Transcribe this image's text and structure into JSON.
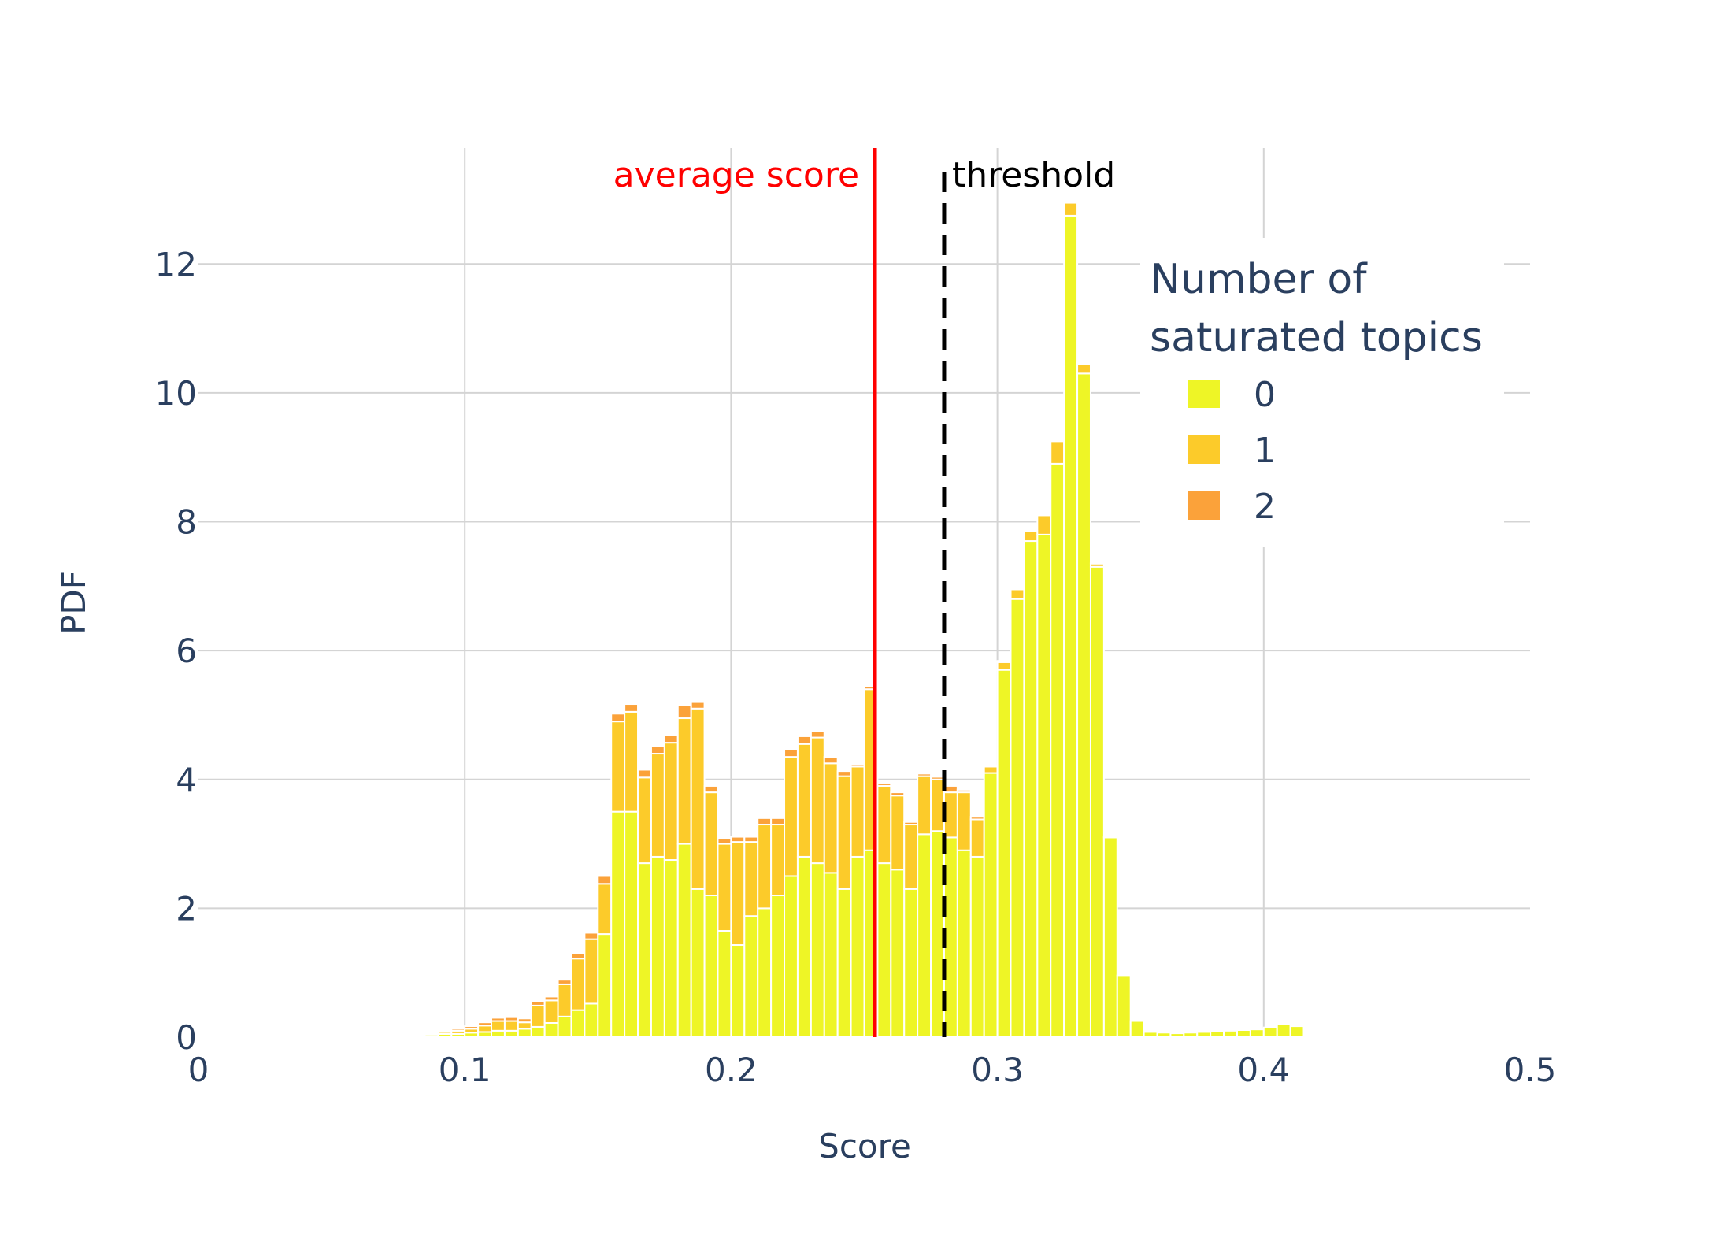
{
  "chart_data": {
    "type": "bar",
    "barmode": "stack",
    "xlabel": "Score",
    "ylabel": "PDF",
    "xlim": [
      0,
      0.5
    ],
    "ylim": [
      0,
      13.8
    ],
    "xticks": [
      0,
      0.1,
      0.2,
      0.3,
      0.4,
      0.5
    ],
    "xtick_labels": [
      "0",
      "0.1",
      "0.2",
      "0.3",
      "0.4",
      "0.5"
    ],
    "yticks": [
      0,
      2,
      4,
      6,
      8,
      10,
      12
    ],
    "ytick_labels": [
      "0",
      "2",
      "4",
      "6",
      "8",
      "10",
      "12"
    ],
    "grid": true,
    "legend": {
      "title_line1": "Number of",
      "title_line2": "saturated topics",
      "position": "top-right"
    },
    "x": [
      0.0525,
      0.0575,
      0.0625,
      0.0675,
      0.0725,
      0.0775,
      0.0825,
      0.0875,
      0.0925,
      0.0975,
      0.1025,
      0.1075,
      0.1125,
      0.1175,
      0.1225,
      0.1275,
      0.1325,
      0.1375,
      0.1425,
      0.1475,
      0.1525,
      0.1575,
      0.1625,
      0.1675,
      0.1725,
      0.1775,
      0.1825,
      0.1875,
      0.1925,
      0.1975,
      0.2025,
      0.2075,
      0.2125,
      0.2175,
      0.2225,
      0.2275,
      0.2325,
      0.2375,
      0.2425,
      0.2475,
      0.2525,
      0.2575,
      0.2625,
      0.2675,
      0.2725,
      0.2775,
      0.2825,
      0.2875,
      0.2925,
      0.2975,
      0.3025,
      0.3075,
      0.3125,
      0.3175,
      0.3225,
      0.3275,
      0.3325,
      0.3375,
      0.3425,
      0.3475,
      0.3525,
      0.3575,
      0.3625,
      0.3675,
      0.3725,
      0.3775,
      0.3825,
      0.3875,
      0.3925,
      0.3975,
      0.4025,
      0.4075,
      0.4125,
      0.4175,
      0.4225
    ],
    "series": [
      {
        "name": "0",
        "color": "#eef526",
        "values": [
          0.005,
          0.01,
          0.015,
          0.02,
          0.02,
          0.03,
          0.03,
          0.04,
          0.05,
          0.05,
          0.07,
          0.08,
          0.1,
          0.1,
          0.13,
          0.16,
          0.22,
          0.32,
          0.42,
          0.52,
          1.6,
          3.5,
          3.5,
          2.7,
          2.8,
          2.75,
          3.0,
          2.3,
          2.2,
          1.65,
          1.43,
          1.88,
          2.0,
          2.2,
          2.5,
          2.8,
          2.7,
          2.55,
          2.3,
          2.8,
          2.9,
          2.7,
          2.6,
          2.3,
          3.15,
          3.2,
          3.1,
          2.9,
          2.8,
          4.1,
          5.7,
          6.8,
          7.7,
          7.8,
          8.9,
          12.75,
          10.3,
          7.3,
          3.1,
          0.95,
          0.25,
          0.08,
          0.07,
          0.06,
          0.07,
          0.08,
          0.09,
          0.1,
          0.11,
          0.12,
          0.15,
          0.2,
          0.17,
          0.02,
          0.005
        ]
      },
      {
        "name": "1",
        "color": "#fccb2a",
        "values": [
          0,
          0,
          0,
          0,
          0,
          0,
          0,
          0.01,
          0.03,
          0.05,
          0.06,
          0.1,
          0.15,
          0.15,
          0.1,
          0.33,
          0.35,
          0.5,
          0.8,
          1.0,
          0.78,
          1.4,
          1.55,
          1.33,
          1.6,
          1.82,
          1.95,
          2.8,
          1.6,
          1.35,
          1.6,
          1.15,
          1.3,
          1.1,
          1.85,
          1.75,
          1.95,
          1.7,
          1.75,
          1.4,
          2.5,
          1.2,
          1.15,
          1.0,
          0.9,
          0.8,
          0.7,
          0.9,
          0.58,
          0.1,
          0.12,
          0.15,
          0.15,
          0.3,
          0.35,
          0.2,
          0.15,
          0.05,
          0.01,
          0.01,
          0,
          0,
          0,
          0,
          0,
          0,
          0,
          0,
          0,
          0,
          0,
          0,
          0,
          0,
          0
        ]
      },
      {
        "name": "2",
        "color": "#fba23a",
        "values": [
          0,
          0,
          0,
          0,
          0,
          0,
          0,
          0.01,
          0.02,
          0.03,
          0.04,
          0.05,
          0.05,
          0.06,
          0.06,
          0.06,
          0.06,
          0.07,
          0.08,
          0.1,
          0.12,
          0.12,
          0.12,
          0.12,
          0.12,
          0.12,
          0.2,
          0.1,
          0.1,
          0.08,
          0.08,
          0.08,
          0.1,
          0.1,
          0.12,
          0.12,
          0.1,
          0.1,
          0.08,
          0.04,
          0.05,
          0.04,
          0.05,
          0.04,
          0.04,
          0.04,
          0.1,
          0.04,
          0.04,
          0.02,
          0.02,
          0.01,
          0.02,
          0.02,
          0.02,
          0.03,
          0.02,
          0.01,
          0,
          0,
          0,
          0,
          0,
          0,
          0,
          0,
          0,
          0,
          0,
          0,
          0,
          0,
          0,
          0,
          0
        ]
      }
    ],
    "lines": [
      {
        "label": "average score",
        "x": 0.254,
        "color": "#ff0000",
        "style": "solid"
      },
      {
        "label": "threshold",
        "x": 0.28,
        "color": "#000000",
        "style": "dash"
      }
    ],
    "colors": {
      "axis_text": "#2a3f5f",
      "grid": "#d4d4d4",
      "bar_outline": "#ffffff"
    }
  }
}
